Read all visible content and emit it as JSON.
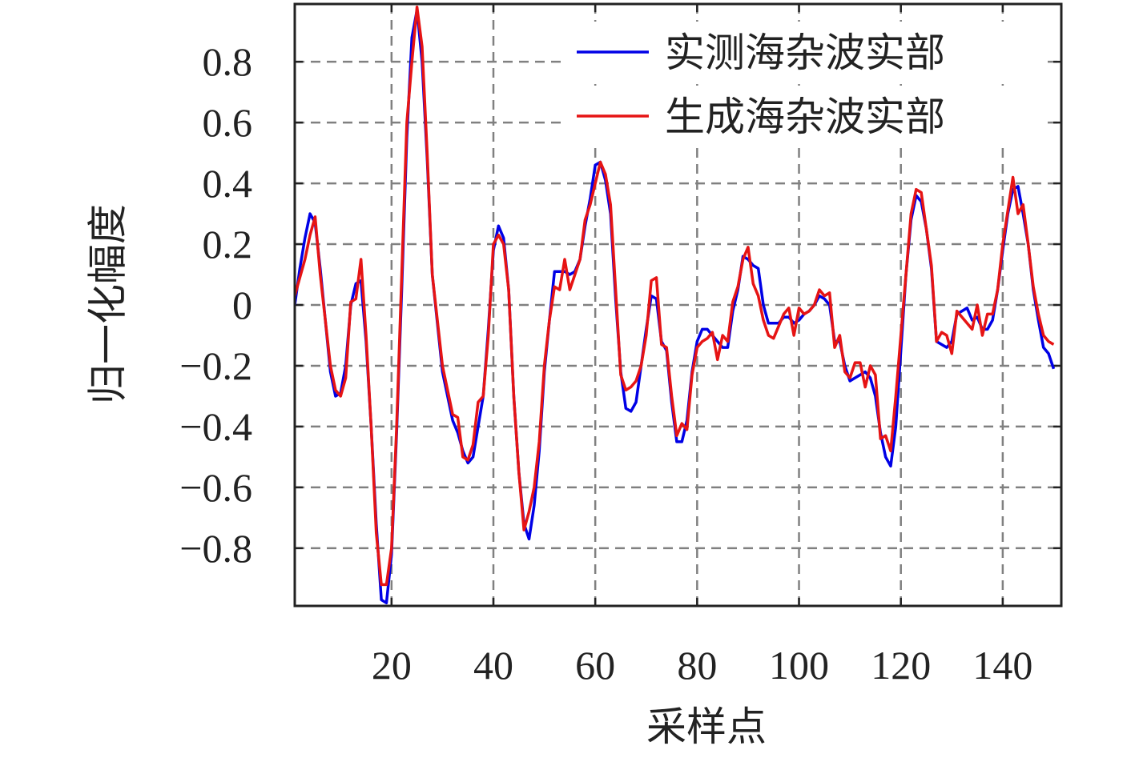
{
  "chart_data": {
    "type": "line",
    "x_label": "采样点",
    "y_label": "归一化幅度",
    "x": [
      1,
      2,
      3,
      4,
      5,
      6,
      7,
      8,
      9,
      10,
      11,
      12,
      13,
      14,
      15,
      16,
      17,
      18,
      19,
      20,
      21,
      22,
      23,
      24,
      25,
      26,
      27,
      28,
      29,
      30,
      31,
      32,
      33,
      34,
      35,
      36,
      37,
      38,
      39,
      40,
      41,
      42,
      43,
      44,
      45,
      46,
      47,
      48,
      49,
      50,
      51,
      52,
      53,
      54,
      55,
      56,
      57,
      58,
      59,
      60,
      61,
      62,
      63,
      64,
      65,
      66,
      67,
      68,
      69,
      70,
      71,
      72,
      73,
      74,
      75,
      76,
      77,
      78,
      79,
      80,
      81,
      82,
      83,
      84,
      85,
      86,
      87,
      88,
      89,
      90,
      91,
      92,
      93,
      94,
      95,
      96,
      97,
      98,
      99,
      100,
      101,
      102,
      103,
      104,
      105,
      106,
      107,
      108,
      109,
      110,
      111,
      112,
      113,
      114,
      115,
      116,
      117,
      118,
      119,
      120,
      121,
      122,
      123,
      124,
      125,
      126,
      127,
      128,
      129,
      130,
      131,
      132,
      133,
      134,
      135,
      136,
      137,
      138,
      139,
      140,
      141,
      142,
      143,
      144,
      145,
      146,
      147,
      148,
      149,
      150
    ],
    "series": [
      {
        "name": "实测海杂波实部",
        "color": "#0000e6",
        "values": [
          0.0,
          0.12,
          0.22,
          0.3,
          0.27,
          0.12,
          -0.05,
          -0.22,
          -0.3,
          -0.29,
          -0.2,
          0.0,
          0.07,
          0.08,
          -0.12,
          -0.4,
          -0.72,
          -0.97,
          -0.98,
          -0.82,
          -0.42,
          0.05,
          0.55,
          0.88,
          0.97,
          0.8,
          0.48,
          0.1,
          -0.06,
          -0.22,
          -0.3,
          -0.38,
          -0.42,
          -0.48,
          -0.52,
          -0.5,
          -0.4,
          -0.3,
          -0.08,
          0.18,
          0.26,
          0.22,
          0.05,
          -0.3,
          -0.55,
          -0.72,
          -0.77,
          -0.66,
          -0.48,
          -0.22,
          -0.05,
          0.11,
          0.11,
          0.11,
          0.1,
          0.11,
          0.15,
          0.26,
          0.35,
          0.46,
          0.47,
          0.41,
          0.3,
          0.02,
          -0.22,
          -0.34,
          -0.35,
          -0.32,
          -0.2,
          -0.08,
          0.03,
          0.02,
          -0.12,
          -0.15,
          -0.32,
          -0.45,
          -0.45,
          -0.38,
          -0.22,
          -0.12,
          -0.08,
          -0.08,
          -0.1,
          -0.12,
          -0.14,
          -0.14,
          -0.02,
          0.05,
          0.16,
          0.15,
          0.13,
          0.12,
          0.0,
          -0.06,
          -0.06,
          -0.06,
          -0.04,
          -0.04,
          -0.06,
          -0.05,
          -0.03,
          -0.02,
          0.0,
          0.03,
          0.02,
          0.0,
          -0.12,
          -0.12,
          -0.2,
          -0.25,
          -0.24,
          -0.23,
          -0.22,
          -0.24,
          -0.3,
          -0.42,
          -0.5,
          -0.53,
          -0.4,
          -0.15,
          0.1,
          0.28,
          0.36,
          0.34,
          0.25,
          0.12,
          -0.12,
          -0.13,
          -0.14,
          -0.12,
          -0.03,
          -0.02,
          -0.01,
          -0.05,
          -0.04,
          -0.08,
          -0.08,
          -0.05,
          0.05,
          0.18,
          0.3,
          0.38,
          0.39,
          0.3,
          0.2,
          0.05,
          -0.05,
          -0.14,
          -0.16,
          -0.21
        ]
      },
      {
        "name": "生成海杂波实部",
        "color": "#e61414",
        "values": [
          0.03,
          0.09,
          0.15,
          0.23,
          0.29,
          0.1,
          -0.05,
          -0.2,
          -0.28,
          -0.3,
          -0.24,
          0.01,
          0.02,
          0.15,
          -0.1,
          -0.4,
          -0.75,
          -0.92,
          -0.92,
          -0.8,
          -0.4,
          0.1,
          0.6,
          0.8,
          0.98,
          0.85,
          0.5,
          0.1,
          -0.05,
          -0.2,
          -0.28,
          -0.36,
          -0.37,
          -0.5,
          -0.51,
          -0.46,
          -0.32,
          -0.3,
          -0.1,
          0.2,
          0.23,
          0.2,
          0.05,
          -0.3,
          -0.55,
          -0.74,
          -0.68,
          -0.6,
          -0.45,
          -0.2,
          -0.05,
          0.06,
          0.05,
          0.15,
          0.05,
          0.1,
          0.15,
          0.28,
          0.33,
          0.4,
          0.47,
          0.43,
          0.33,
          0.05,
          -0.23,
          -0.28,
          -0.27,
          -0.25,
          -0.2,
          -0.1,
          0.08,
          0.09,
          -0.13,
          -0.14,
          -0.3,
          -0.43,
          -0.39,
          -0.41,
          -0.23,
          -0.14,
          -0.12,
          -0.11,
          -0.09,
          -0.18,
          -0.1,
          -0.12,
          0.01,
          0.06,
          0.15,
          0.19,
          0.07,
          0.03,
          -0.05,
          -0.1,
          -0.11,
          -0.07,
          -0.03,
          -0.01,
          -0.1,
          -0.01,
          -0.03,
          -0.02,
          0.0,
          0.05,
          0.03,
          0.04,
          -0.14,
          -0.1,
          -0.22,
          -0.24,
          -0.19,
          -0.19,
          -0.27,
          -0.2,
          -0.23,
          -0.44,
          -0.43,
          -0.48,
          -0.3,
          -0.1,
          0.1,
          0.3,
          0.38,
          0.37,
          0.25,
          0.13,
          -0.12,
          -0.09,
          -0.1,
          -0.16,
          -0.02,
          -0.04,
          -0.06,
          -0.08,
          0.0,
          -0.1,
          -0.03,
          -0.03,
          0.05,
          0.2,
          0.31,
          0.42,
          0.3,
          0.33,
          0.2,
          0.06,
          -0.03,
          -0.1,
          -0.12,
          -0.13
        ]
      }
    ],
    "xlim": [
      1,
      151.5
    ],
    "ylim": [
      -0.99,
      0.99
    ],
    "xticks": [
      20,
      40,
      60,
      80,
      100,
      120,
      140
    ],
    "yticks": [
      {
        "value": -0.8,
        "label": "−0.8"
      },
      {
        "value": -0.6,
        "label": "−0.6"
      },
      {
        "value": -0.4,
        "label": "−0.4"
      },
      {
        "value": -0.2,
        "label": "−0.2"
      },
      0,
      0.2,
      0.4,
      0.6,
      0.8
    ],
    "grid": true,
    "legend": "upper right"
  }
}
